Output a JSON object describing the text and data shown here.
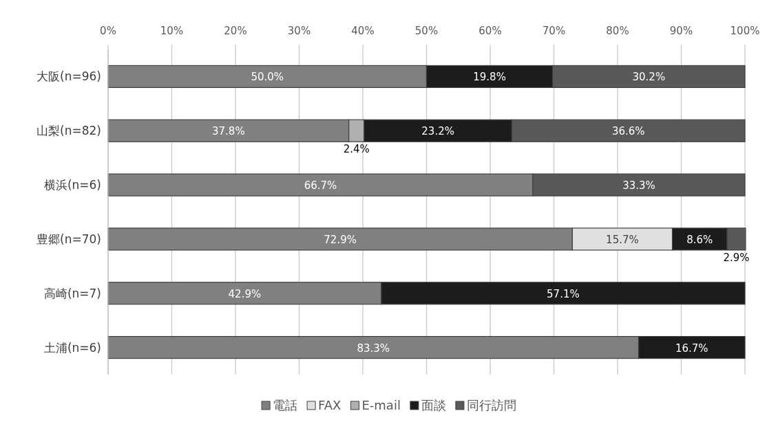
{
  "chart_data": {
    "type": "bar",
    "orientation": "horizontal",
    "stacked": true,
    "categories": [
      "大阪(n=96)",
      "山梨(n=82)",
      "横浜(n=6)",
      "豊郷(n=70)",
      "高崎(n=7)",
      "土浦(n=6)"
    ],
    "series": [
      {
        "name": "電話",
        "color": "#808080",
        "values": [
          50.0,
          37.8,
          66.7,
          72.9,
          42.9,
          83.3
        ],
        "value_labels": [
          "50.0%",
          "37.8%",
          "66.7%",
          "72.9%",
          "42.9%",
          "83.3%"
        ]
      },
      {
        "name": "FAX",
        "color": "#e0e0e0",
        "values": [
          null,
          null,
          null,
          15.7,
          null,
          null
        ],
        "value_labels": [
          null,
          null,
          null,
          "15.7%",
          null,
          null
        ]
      },
      {
        "name": "E-mail",
        "color": "#b0b0b0",
        "values": [
          null,
          2.4,
          null,
          null,
          null,
          null
        ],
        "value_labels": [
          null,
          "2.4%",
          null,
          null,
          null,
          null
        ]
      },
      {
        "name": "面談",
        "color": "#1c1c1c",
        "values": [
          19.8,
          23.2,
          null,
          8.6,
          57.1,
          16.7
        ],
        "value_labels": [
          "19.8%",
          "23.2%",
          null,
          "8.6%",
          "57.1%",
          "16.7%"
        ]
      },
      {
        "name": "同行訪問",
        "color": "#595959",
        "values": [
          30.2,
          36.6,
          33.3,
          2.9,
          null,
          null
        ],
        "value_labels": [
          "30.2%",
          "36.6%",
          "33.3%",
          "2.9%",
          null,
          null
        ]
      }
    ],
    "xlim": [
      0,
      100
    ],
    "xticks": [
      {
        "value": 0,
        "label": "0%"
      },
      {
        "value": 10,
        "label": "10%"
      },
      {
        "value": 20,
        "label": "20%"
      },
      {
        "value": 30,
        "label": "30%"
      },
      {
        "value": 40,
        "label": "40%"
      },
      {
        "value": 50,
        "label": "50%"
      },
      {
        "value": 60,
        "label": "60%"
      },
      {
        "value": 70,
        "label": "70%"
      },
      {
        "value": 80,
        "label": "80%"
      },
      {
        "value": 90,
        "label": "90%"
      },
      {
        "value": 100,
        "label": "100%"
      }
    ],
    "grid": "x",
    "legend": "bottom"
  }
}
